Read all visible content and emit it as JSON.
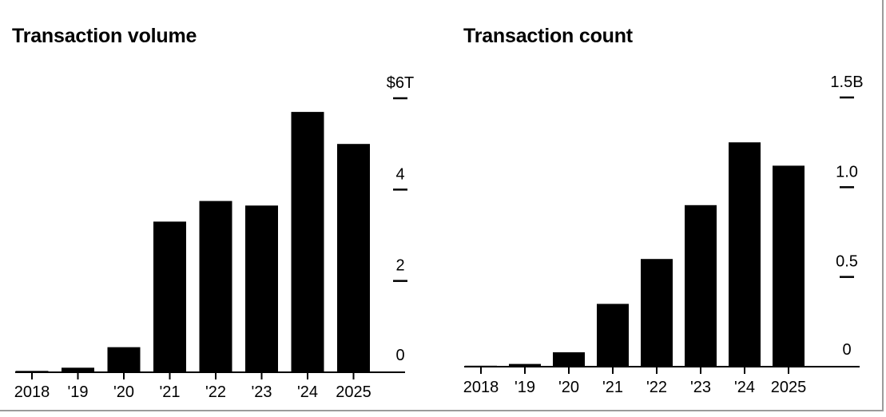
{
  "page": {
    "background": "#ffffff",
    "card_border_color": "#9b9b9b",
    "text_color": "#000000"
  },
  "chart_data": [
    {
      "type": "bar",
      "title": "Transaction volume",
      "categories": [
        "2018",
        "'19",
        "'20",
        "'21",
        "'22",
        "'23",
        "'24",
        "2025"
      ],
      "values": [
        0.03,
        0.1,
        0.55,
        3.3,
        3.75,
        3.65,
        5.7,
        5.0
      ],
      "unit": "trillions of US dollars",
      "ylim": [
        0,
        6
      ],
      "yticks": [
        {
          "value": 6,
          "label": "$6T"
        },
        {
          "value": 4,
          "label": "4"
        },
        {
          "value": 2,
          "label": "2"
        },
        {
          "value": 0,
          "label": "0"
        }
      ],
      "axis_side": "right",
      "grid": false,
      "legend": false,
      "bar_color": "#000000",
      "axis_color": "#000000"
    },
    {
      "type": "bar",
      "title": "Transaction count",
      "categories": [
        "2018",
        "'19",
        "'20",
        "'21",
        "'22",
        "'23",
        "'24",
        "2025"
      ],
      "values": [
        0.005,
        0.015,
        0.08,
        0.35,
        0.6,
        0.9,
        1.25,
        1.12
      ],
      "unit": "billions of transactions",
      "ylim": [
        0,
        1.5
      ],
      "yticks": [
        {
          "value": 1.5,
          "label": "1.5B"
        },
        {
          "value": 1.0,
          "label": "1.0"
        },
        {
          "value": 0.5,
          "label": "0.5"
        },
        {
          "value": 0,
          "label": "0"
        }
      ],
      "axis_side": "right",
      "grid": false,
      "legend": false,
      "bar_color": "#000000",
      "axis_color": "#000000"
    }
  ]
}
